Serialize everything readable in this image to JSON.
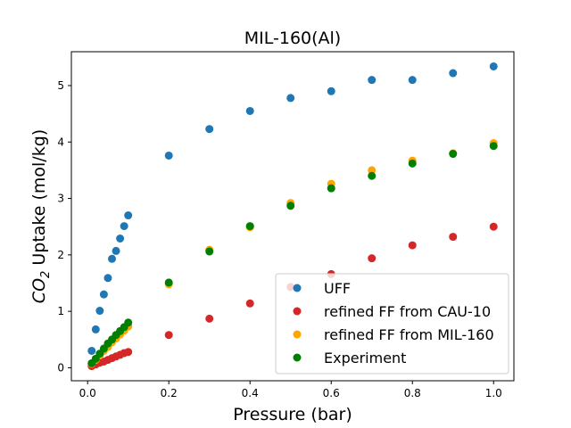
{
  "chart_data": {
    "type": "scatter",
    "title": "MIL-160(Al)",
    "xlabel": "Pressure (bar)",
    "ylabel_prefix": "CO",
    "ylabel_subscript": "2",
    "ylabel_suffix": " Uptake (mol/kg)",
    "xlim": [
      -0.04,
      1.05
    ],
    "ylim": [
      -0.23,
      5.6
    ],
    "xticks": [
      0.0,
      0.2,
      0.4,
      0.6,
      0.8,
      1.0
    ],
    "xtick_labels": [
      "0.0",
      "0.2",
      "0.4",
      "0.6",
      "0.8",
      "1.0"
    ],
    "yticks": [
      0,
      1,
      2,
      3,
      4,
      5
    ],
    "ytick_labels": [
      "0",
      "1",
      "2",
      "3",
      "4",
      "5"
    ],
    "grid": false,
    "legend_position": "lower-right",
    "series": [
      {
        "name": "UFF",
        "color": "#1f77b4",
        "x": [
          0.01,
          0.02,
          0.03,
          0.04,
          0.05,
          0.06,
          0.07,
          0.08,
          0.09,
          0.1,
          0.2,
          0.3,
          0.4,
          0.5,
          0.6,
          0.7,
          0.8,
          0.9,
          1.0
        ],
        "y": [
          0.3,
          0.68,
          1.01,
          1.3,
          1.59,
          1.93,
          2.07,
          2.29,
          2.51,
          2.7,
          3.76,
          4.23,
          4.55,
          4.78,
          4.9,
          5.1,
          5.1,
          5.22,
          5.34
        ]
      },
      {
        "name": "refined FF from CAU-10",
        "color": "#d62728",
        "x": [
          0.01,
          0.02,
          0.03,
          0.04,
          0.05,
          0.06,
          0.07,
          0.08,
          0.09,
          0.1,
          0.2,
          0.3,
          0.4,
          0.5,
          0.6,
          0.7,
          0.8,
          0.9,
          1.0
        ],
        "y": [
          0.03,
          0.06,
          0.09,
          0.11,
          0.14,
          0.17,
          0.2,
          0.23,
          0.26,
          0.28,
          0.58,
          0.87,
          1.14,
          1.43,
          1.66,
          1.94,
          2.17,
          2.32,
          2.5
        ]
      },
      {
        "name": "refined FF from MIL-160",
        "color": "#ffa500",
        "x": [
          0.01,
          0.02,
          0.03,
          0.04,
          0.05,
          0.06,
          0.07,
          0.08,
          0.09,
          0.1,
          0.2,
          0.3,
          0.4,
          0.5,
          0.6,
          0.7,
          0.8,
          0.9,
          1.0
        ],
        "y": [
          0.07,
          0.14,
          0.22,
          0.3,
          0.37,
          0.45,
          0.52,
          0.59,
          0.66,
          0.73,
          1.48,
          2.09,
          2.49,
          2.92,
          3.26,
          3.5,
          3.67,
          3.8,
          3.98
        ]
      },
      {
        "name": "Experiment",
        "color": "#008000",
        "x": [
          0.01,
          0.02,
          0.03,
          0.04,
          0.05,
          0.06,
          0.07,
          0.08,
          0.09,
          0.1,
          0.2,
          0.3,
          0.4,
          0.5,
          0.6,
          0.7,
          0.8,
          0.9,
          1.0
        ],
        "y": [
          0.08,
          0.16,
          0.25,
          0.34,
          0.43,
          0.5,
          0.58,
          0.65,
          0.72,
          0.8,
          1.51,
          2.06,
          2.51,
          2.87,
          3.18,
          3.4,
          3.62,
          3.79,
          3.93
        ]
      }
    ]
  }
}
